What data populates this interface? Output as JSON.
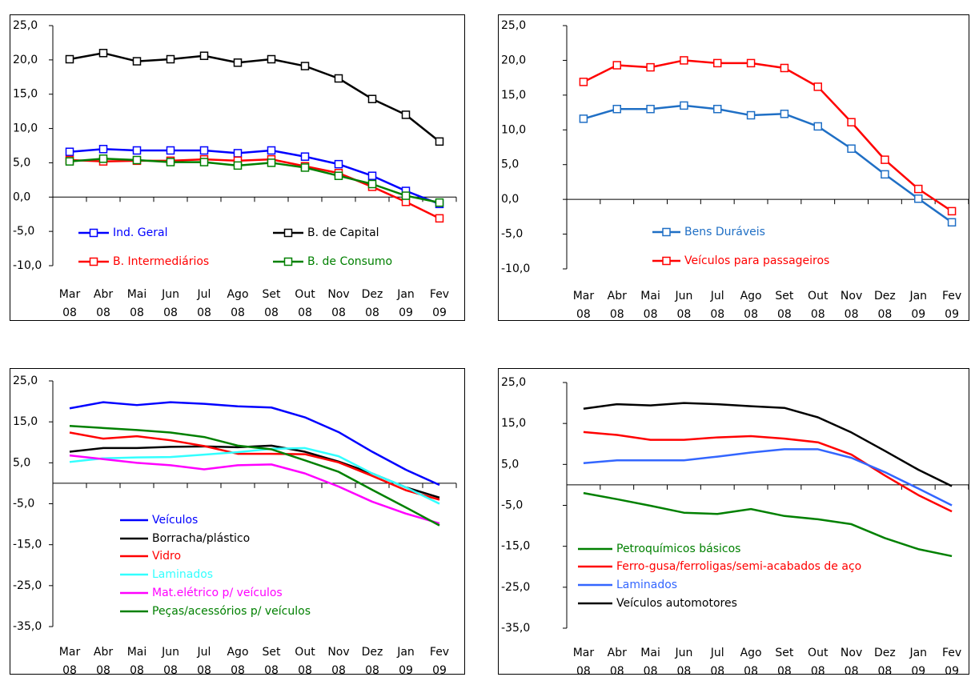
{
  "chart_data": [
    {
      "type": "line",
      "markers": true,
      "categories": [
        "Mar\n08",
        "Abr\n08",
        "Mai\n08",
        "Jun\n08",
        "Jul\n08",
        "Ago\n08",
        "Set\n08",
        "Out\n08",
        "Nov\n08",
        "Dez\n08",
        "Jan\n09",
        "Fev\n09"
      ],
      "ylim": [
        -10,
        25
      ],
      "yticks": [
        {
          "value": 25,
          "label": "25,0"
        },
        {
          "value": 20,
          "label": "20,0"
        },
        {
          "value": 15,
          "label": "15,0"
        },
        {
          "value": 10,
          "label": "10,0"
        },
        {
          "value": 5,
          "label": "5,0"
        },
        {
          "value": 0,
          "label": "0,0"
        },
        {
          "value": -5,
          "label": "-5,0"
        },
        {
          "value": -10,
          "label": "-10,0"
        }
      ],
      "series": [
        {
          "name": "Ind. Geral",
          "color": "#0000ff",
          "values": [
            6.6,
            7.0,
            6.8,
            6.8,
            6.8,
            6.4,
            6.8,
            5.9,
            4.8,
            3.1,
            0.9,
            -1.0
          ]
        },
        {
          "name": "B. de Capital",
          "color": "#000000",
          "values": [
            20.1,
            21.0,
            19.8,
            20.1,
            20.6,
            19.6,
            20.1,
            19.1,
            17.3,
            14.3,
            12.0,
            8.1
          ]
        },
        {
          "name": "B. Intermediários",
          "color": "#ff0000",
          "values": [
            5.4,
            5.2,
            5.3,
            5.3,
            5.5,
            5.3,
            5.5,
            4.5,
            3.5,
            1.5,
            -0.7,
            -3.1
          ]
        },
        {
          "name": "B. de Consumo",
          "color": "#008000",
          "values": [
            5.2,
            5.6,
            5.4,
            5.1,
            5.1,
            4.6,
            5.0,
            4.3,
            3.1,
            1.9,
            0.2,
            -0.8
          ]
        }
      ]
    },
    {
      "type": "line",
      "markers": true,
      "categories": [
        "Mar\n08",
        "Abr\n08",
        "Mai\n08",
        "Jun\n08",
        "Jul\n08",
        "Ago\n08",
        "Set\n08",
        "Out\n08",
        "Nov\n08",
        "Dez\n08",
        "Jan\n09",
        "Fev\n09"
      ],
      "ylim": [
        -10,
        25
      ],
      "yticks": [
        {
          "value": 25,
          "label": "25,0"
        },
        {
          "value": 20,
          "label": "20,0"
        },
        {
          "value": 15,
          "label": "15,0"
        },
        {
          "value": 10,
          "label": "10,0"
        },
        {
          "value": 5,
          "label": "5,0"
        },
        {
          "value": 0,
          "label": "0,0"
        },
        {
          "value": -5,
          "label": "-5,0"
        },
        {
          "value": -10,
          "label": "-10,0"
        }
      ],
      "series": [
        {
          "name": "Bens Duráveis",
          "color": "#1f6fc5",
          "values": [
            11.6,
            13.0,
            13.0,
            13.5,
            13.0,
            12.1,
            12.3,
            10.5,
            7.3,
            3.6,
            0.1,
            -3.3
          ]
        },
        {
          "name": "Veículos para passageiros",
          "color": "#ff0000",
          "values": [
            16.9,
            19.3,
            19.0,
            20.0,
            19.6,
            19.6,
            18.9,
            16.2,
            11.1,
            5.7,
            1.5,
            -1.7
          ]
        }
      ]
    },
    {
      "type": "line",
      "markers": false,
      "categories": [
        "Mar\n08",
        "Abr\n08",
        "Mai\n08",
        "Jun\n08",
        "Jul\n08",
        "Ago\n08",
        "Set\n08",
        "Out\n08",
        "Nov\n08",
        "Dez\n08",
        "Jan\n09",
        "Fev\n09"
      ],
      "ylim": [
        -35,
        25
      ],
      "yticks": [
        {
          "value": 25,
          "label": "25,0"
        },
        {
          "value": 15,
          "label": "15,0"
        },
        {
          "value": 5,
          "label": "5,0"
        },
        {
          "value": -5,
          "label": "-5,0"
        },
        {
          "value": -15,
          "label": "-15,0"
        },
        {
          "value": -25,
          "label": "-25,0"
        },
        {
          "value": -35,
          "label": "-35,0"
        }
      ],
      "series": [
        {
          "name": "Veículos",
          "color": "#0000ff",
          "values": [
            18.3,
            19.8,
            19.1,
            19.8,
            19.4,
            18.8,
            18.5,
            16.1,
            12.5,
            7.7,
            3.3,
            -0.4
          ]
        },
        {
          "name": "Borracha/plástico",
          "color": "#000000",
          "values": [
            7.7,
            8.6,
            8.6,
            8.9,
            9.0,
            8.8,
            9.2,
            7.7,
            5.3,
            2.4,
            -1.0,
            -3.5
          ]
        },
        {
          "name": "Vidro",
          "color": "#ff0000",
          "values": [
            12.4,
            10.9,
            11.5,
            10.5,
            9.1,
            7.2,
            7.2,
            7.1,
            5.1,
            1.8,
            -1.7,
            -4.0
          ]
        },
        {
          "name": "Laminados",
          "color": "#33ffff",
          "values": [
            5.2,
            6.1,
            6.3,
            6.4,
            7.0,
            7.6,
            8.4,
            8.6,
            6.6,
            2.4,
            -1.0,
            -5.0
          ]
        },
        {
          "name": "Mat.elétrico p/ veículos",
          "color": "#ff00ff",
          "values": [
            6.8,
            5.9,
            5.0,
            4.4,
            3.4,
            4.4,
            4.6,
            2.4,
            -0.8,
            -4.5,
            -7.4,
            -9.8
          ]
        },
        {
          "name": "Peças/acessórios p/ veículos",
          "color": "#008000",
          "values": [
            14.0,
            13.5,
            13.0,
            12.4,
            11.3,
            9.2,
            8.3,
            5.6,
            2.8,
            -1.6,
            -5.9,
            -10.3
          ]
        }
      ]
    },
    {
      "type": "line",
      "markers": false,
      "categories": [
        "Mar\n08",
        "Abr\n08",
        "Mai\n08",
        "Jun\n08",
        "Jul\n08",
        "Ago\n08",
        "Set\n08",
        "Out\n08",
        "Nov\n08",
        "Dez\n08",
        "Jan\n09",
        "Fev\n09"
      ],
      "ylim": [
        -35,
        25
      ],
      "yticks": [
        {
          "value": 25,
          "label": "25,0"
        },
        {
          "value": 15,
          "label": "15,0"
        },
        {
          "value": 5,
          "label": "5,0"
        },
        {
          "value": -5,
          "label": "-5,0"
        },
        {
          "value": -15,
          "label": "-15,0"
        },
        {
          "value": -25,
          "label": "-25,0"
        },
        {
          "value": -35,
          "label": "-35,0"
        }
      ],
      "series": [
        {
          "name": "Petroquímicos básicos",
          "color": "#008000",
          "values": [
            -2.0,
            -3.5,
            -5.1,
            -6.8,
            -7.1,
            -5.9,
            -7.6,
            -8.4,
            -9.6,
            -13.0,
            -15.7,
            -17.4
          ]
        },
        {
          "name": "Ferro-gusa/ferroligas/semi-acabados de aço",
          "color": "#ff0000",
          "values": [
            12.9,
            12.2,
            11.0,
            11.0,
            11.6,
            11.9,
            11.3,
            10.4,
            7.4,
            2.3,
            -2.5,
            -6.5
          ]
        },
        {
          "name": "Laminados",
          "color": "#3366ff",
          "values": [
            5.3,
            6.0,
            6.0,
            6.0,
            6.9,
            7.9,
            8.7,
            8.7,
            6.6,
            3.1,
            -0.9,
            -5.0
          ]
        },
        {
          "name": "Veículos automotores",
          "color": "#000000",
          "values": [
            18.6,
            19.7,
            19.4,
            20.0,
            19.7,
            19.2,
            18.8,
            16.5,
            12.8,
            8.3,
            3.7,
            -0.3
          ]
        }
      ]
    }
  ]
}
